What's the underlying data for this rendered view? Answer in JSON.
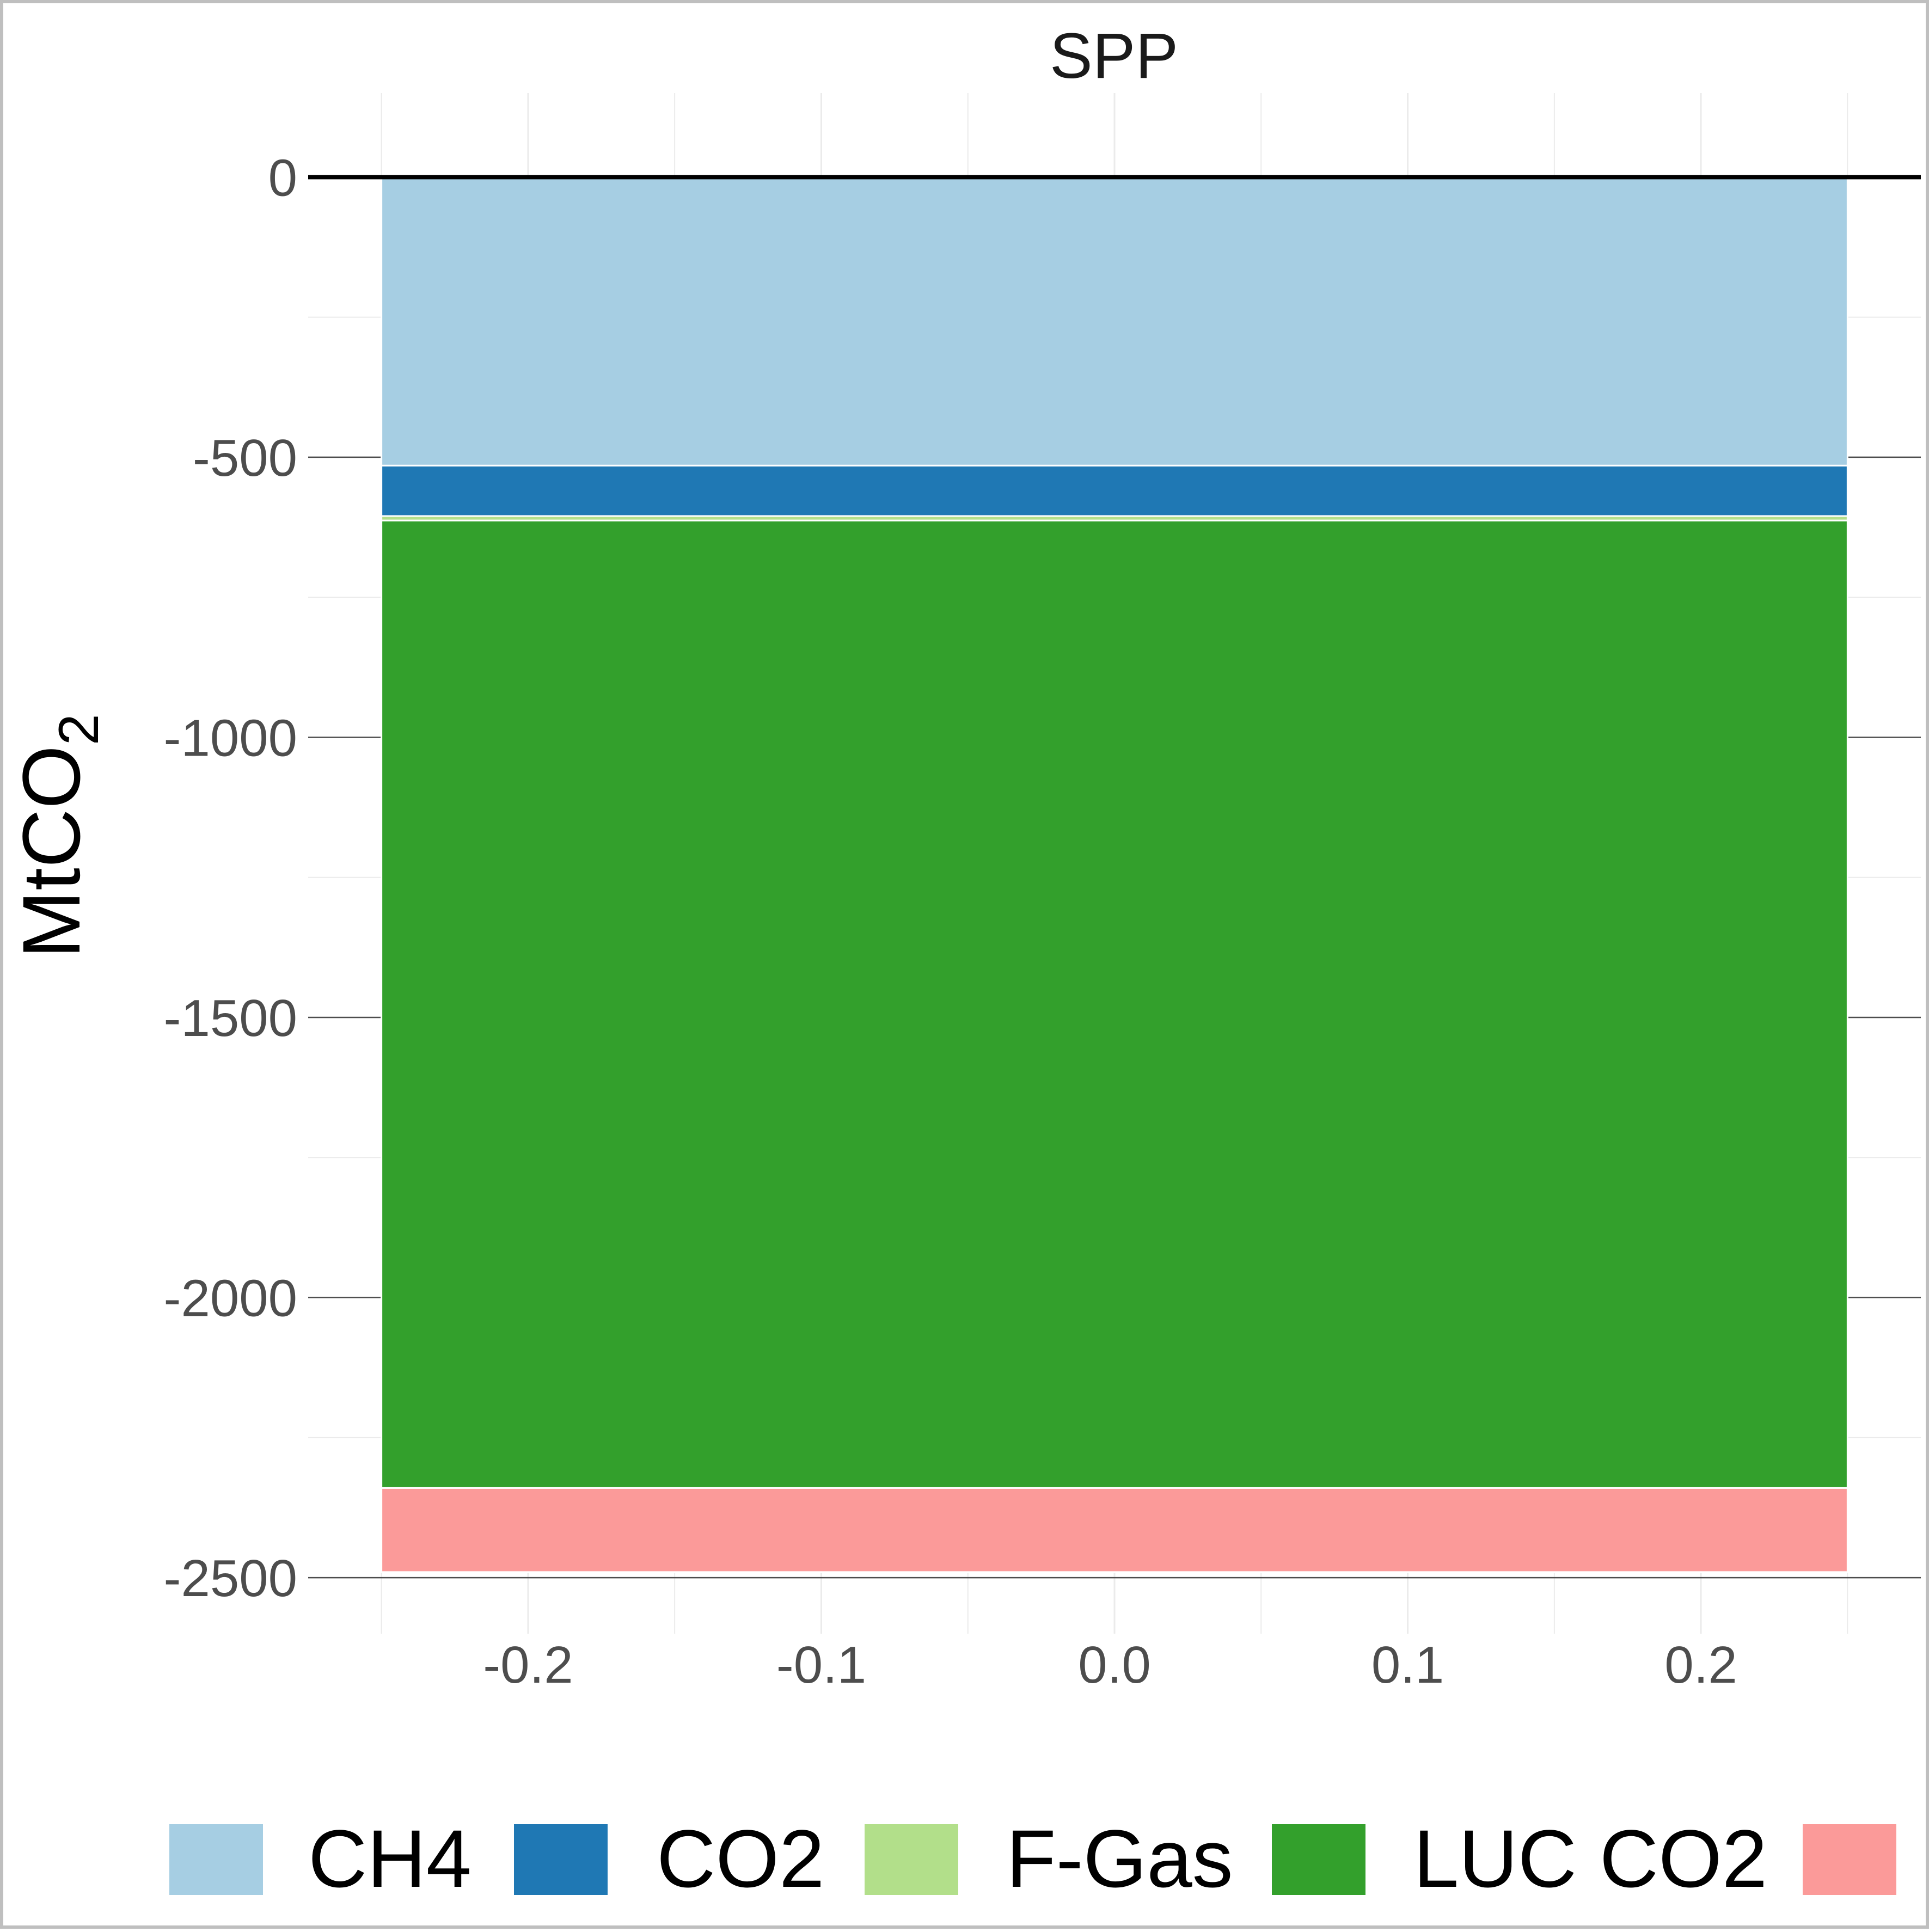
{
  "chart_data": {
    "type": "bar",
    "stacked": true,
    "facet": "SPP",
    "ylabel": "MtCO",
    "ylabel_subscript": "2",
    "xlim": [
      -0.275,
      0.275
    ],
    "ylim": [
      -2600,
      150
    ],
    "x_ticks": [
      "-0.2",
      "-0.1",
      "0.0",
      "0.1",
      "0.2"
    ],
    "x_tick_values": [
      -0.2,
      -0.1,
      0.0,
      0.1,
      0.2
    ],
    "y_ticks": [
      "0",
      "-500",
      "-1000",
      "-1500",
      "-2000",
      "-2500"
    ],
    "y_tick_values": [
      0,
      -500,
      -1000,
      -1500,
      -2000,
      -2500
    ],
    "bar_x_range": [
      -0.25,
      0.25
    ],
    "zero_line": true,
    "grid": true,
    "legend_position": "bottom",
    "series": [
      {
        "name": "CH4",
        "value": -515,
        "color": "#a6cee3"
      },
      {
        "name": "CO2",
        "value": -90,
        "color": "#1f78b4"
      },
      {
        "name": "F-Gas",
        "value": -8,
        "color": "#b2df8a"
      },
      {
        "name": "LUC CO2",
        "value": -1727,
        "color": "#33a02c"
      },
      {
        "name": "",
        "value": -150,
        "color": "#fb9a99"
      }
    ]
  }
}
